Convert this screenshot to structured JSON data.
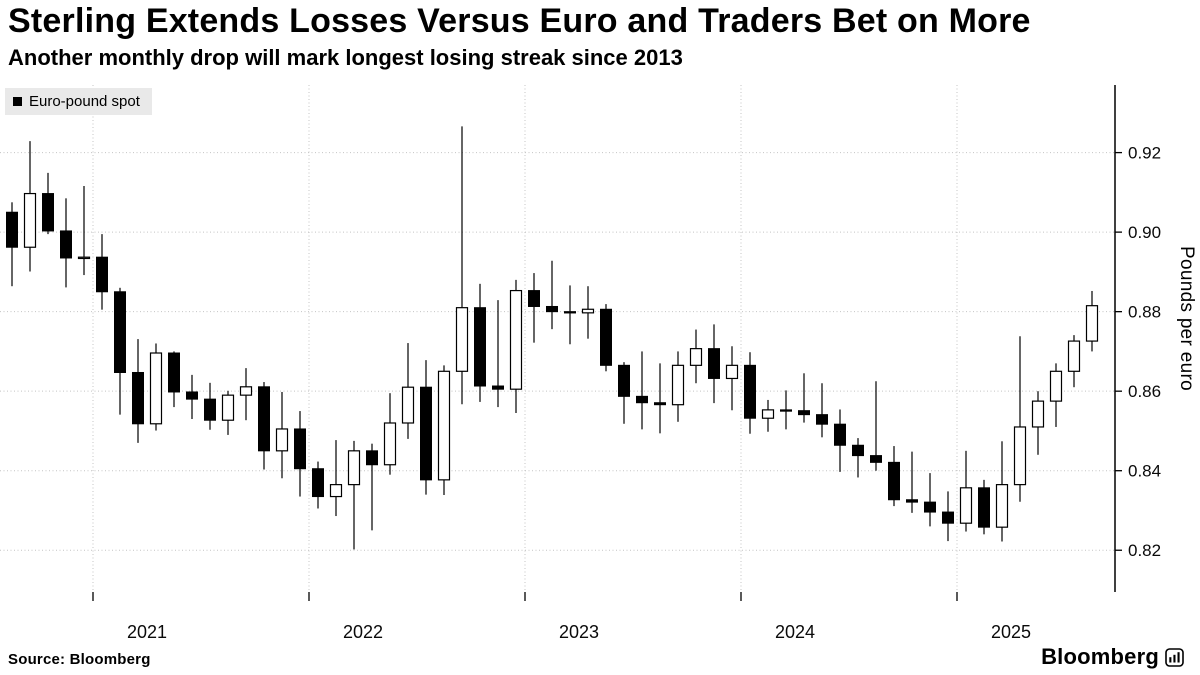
{
  "header": {
    "title": "Sterling Extends Losses Versus Euro and Traders Bet on More",
    "subtitle": "Another monthly drop will mark longest losing streak since 2013"
  },
  "legend": {
    "label": "Euro-pound spot"
  },
  "footer": {
    "source": "Source: Bloomberg",
    "brand": "Bloomberg"
  },
  "chart_data": {
    "type": "candlestick",
    "series_name": "Euro-pound spot",
    "title": "Sterling Extends Losses Versus Euro and Traders Bet on More",
    "xlabel": "",
    "ylabel": "Pounds per euro",
    "ylim": [
      0.81,
      0.937
    ],
    "yticks": [
      0.82,
      0.84,
      0.86,
      0.88,
      0.9,
      0.92
    ],
    "xticks": [
      "2021",
      "2022",
      "2023",
      "2024",
      "2025"
    ],
    "grid": "dotted",
    "legend_position": "top-left",
    "up_style": "hollow-white",
    "down_style": "filled-black",
    "colors": {
      "up_fill": "#ffffff",
      "down_fill": "#000000",
      "grid": "#c4c4c4",
      "axis": "#000000",
      "legend_bg": "#e9e9e9"
    },
    "candle_fields": [
      "month",
      "open",
      "high",
      "low",
      "close"
    ],
    "candles": [
      [
        "2020-08",
        0.905,
        0.9075,
        0.8864,
        0.8962
      ],
      [
        "2020-09",
        0.8962,
        0.9229,
        0.8901,
        0.9097
      ],
      [
        "2020-10",
        0.9097,
        0.9149,
        0.8995,
        0.9003
      ],
      [
        "2020-11",
        0.9003,
        0.9085,
        0.8861,
        0.8935
      ],
      [
        "2020-12",
        0.8935,
        0.9116,
        0.8892,
        0.8937
      ],
      [
        "2021-01",
        0.8937,
        0.8995,
        0.8805,
        0.885
      ],
      [
        "2021-02",
        0.885,
        0.886,
        0.8541,
        0.8647
      ],
      [
        "2021-03",
        0.8647,
        0.8731,
        0.847,
        0.8518
      ],
      [
        "2021-04",
        0.8518,
        0.872,
        0.8501,
        0.8696
      ],
      [
        "2021-05",
        0.8696,
        0.87,
        0.856,
        0.8598
      ],
      [
        "2021-06",
        0.8598,
        0.8641,
        0.853,
        0.858
      ],
      [
        "2021-07",
        0.858,
        0.8621,
        0.8503,
        0.8527
      ],
      [
        "2021-08",
        0.8527,
        0.8601,
        0.849,
        0.859
      ],
      [
        "2021-09",
        0.859,
        0.8658,
        0.8527,
        0.8611
      ],
      [
        "2021-10",
        0.8611,
        0.8623,
        0.8403,
        0.845
      ],
      [
        "2021-11",
        0.845,
        0.8598,
        0.8381,
        0.8505
      ],
      [
        "2021-12",
        0.8505,
        0.855,
        0.8335,
        0.8405
      ],
      [
        "2022-01",
        0.8405,
        0.8423,
        0.8305,
        0.8335
      ],
      [
        "2022-02",
        0.8335,
        0.8477,
        0.8286,
        0.8365
      ],
      [
        "2022-03",
        0.8365,
        0.8475,
        0.8202,
        0.845
      ],
      [
        "2022-04",
        0.845,
        0.8468,
        0.825,
        0.8415
      ],
      [
        "2022-05",
        0.8415,
        0.8595,
        0.839,
        0.852
      ],
      [
        "2022-06",
        0.852,
        0.8721,
        0.848,
        0.861
      ],
      [
        "2022-07",
        0.861,
        0.8678,
        0.834,
        0.8377
      ],
      [
        "2022-08",
        0.8377,
        0.8665,
        0.8339,
        0.865
      ],
      [
        "2022-09",
        0.865,
        0.9266,
        0.8567,
        0.881
      ],
      [
        "2022-10",
        0.881,
        0.887,
        0.8573,
        0.8613
      ],
      [
        "2022-11",
        0.8613,
        0.8829,
        0.856,
        0.8605
      ],
      [
        "2022-12",
        0.8605,
        0.888,
        0.8545,
        0.8853
      ],
      [
        "2023-01",
        0.8853,
        0.8897,
        0.8722,
        0.8813
      ],
      [
        "2023-02",
        0.8813,
        0.8928,
        0.8756,
        0.88
      ],
      [
        "2023-03",
        0.88,
        0.8866,
        0.8718,
        0.8797
      ],
      [
        "2023-04",
        0.8797,
        0.8864,
        0.8732,
        0.8806
      ],
      [
        "2023-05",
        0.8806,
        0.8819,
        0.865,
        0.8665
      ],
      [
        "2023-06",
        0.8665,
        0.8673,
        0.8518,
        0.8587
      ],
      [
        "2023-07",
        0.8587,
        0.87,
        0.8504,
        0.8571
      ],
      [
        "2023-08",
        0.8571,
        0.867,
        0.8494,
        0.8566
      ],
      [
        "2023-09",
        0.8566,
        0.87,
        0.8523,
        0.8665
      ],
      [
        "2023-10",
        0.8665,
        0.8755,
        0.862,
        0.8707
      ],
      [
        "2023-11",
        0.8707,
        0.8768,
        0.857,
        0.8632
      ],
      [
        "2023-12",
        0.8632,
        0.8713,
        0.8552,
        0.8665
      ],
      [
        "2024-01",
        0.8665,
        0.8698,
        0.8493,
        0.8532
      ],
      [
        "2024-02",
        0.8532,
        0.8578,
        0.8498,
        0.8553
      ],
      [
        "2024-03",
        0.8553,
        0.8602,
        0.8504,
        0.8551
      ],
      [
        "2024-04",
        0.8551,
        0.8645,
        0.8521,
        0.8541
      ],
      [
        "2024-05",
        0.8541,
        0.862,
        0.8484,
        0.8517
      ],
      [
        "2024-06",
        0.8517,
        0.8554,
        0.8397,
        0.8464
      ],
      [
        "2024-07",
        0.8464,
        0.8482,
        0.8383,
        0.8438
      ],
      [
        "2024-08",
        0.8438,
        0.8625,
        0.84,
        0.8421
      ],
      [
        "2024-09",
        0.8421,
        0.8462,
        0.8311,
        0.8327
      ],
      [
        "2024-10",
        0.8327,
        0.8448,
        0.8294,
        0.8321
      ],
      [
        "2024-11",
        0.8321,
        0.8394,
        0.826,
        0.8296
      ],
      [
        "2024-12",
        0.8296,
        0.8348,
        0.8223,
        0.8268
      ],
      [
        "2025-01",
        0.8268,
        0.845,
        0.8247,
        0.8357
      ],
      [
        "2025-02",
        0.8357,
        0.8377,
        0.824,
        0.8258
      ],
      [
        "2025-03",
        0.8258,
        0.8474,
        0.8222,
        0.8365
      ],
      [
        "2025-04",
        0.8365,
        0.8738,
        0.8322,
        0.851
      ],
      [
        "2025-05",
        0.851,
        0.86,
        0.844,
        0.8575
      ],
      [
        "2025-06",
        0.8575,
        0.867,
        0.851,
        0.865
      ],
      [
        "2025-07",
        0.865,
        0.8741,
        0.861,
        0.8726
      ],
      [
        "2025-08",
        0.8726,
        0.8852,
        0.87,
        0.8815
      ]
    ]
  }
}
